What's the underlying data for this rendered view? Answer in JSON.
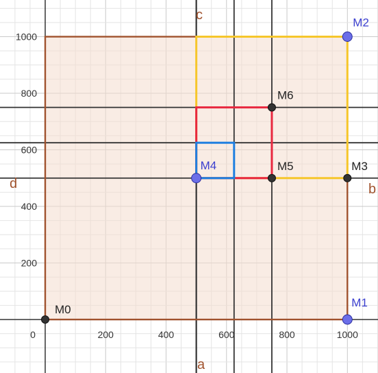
{
  "x_ticks": [
    {
      "value": 0,
      "label": "0"
    },
    {
      "value": 200,
      "label": "200"
    },
    {
      "value": 400,
      "label": "400"
    },
    {
      "value": 600,
      "label": "600"
    },
    {
      "value": 800,
      "label": "800"
    },
    {
      "value": 1000,
      "label": "1000"
    }
  ],
  "y_ticks": [
    {
      "value": 200,
      "label": "200"
    },
    {
      "value": 400,
      "label": "400"
    },
    {
      "value": 600,
      "label": "600"
    },
    {
      "value": 800,
      "label": "800"
    },
    {
      "value": 1000,
      "label": "1000"
    }
  ],
  "colors": {
    "region_fill": "#f4dccd",
    "region_border": "#a0522d",
    "line_label": "#a0522d",
    "grid_minor": "#e4e4e4",
    "grid_major": "#c9c9c9",
    "dark_line": "#333333",
    "yellow": "#f6c62b",
    "red": "#e8283f",
    "blue": "#1f7fe0",
    "point_blue": "#6b6ee8",
    "point_dark": "#333333",
    "point_label_blue": "#3b3fcf",
    "point_label_dark": "#222222"
  },
  "points": [
    {
      "name": "M0",
      "x": 0,
      "y": 0,
      "style": "dark"
    },
    {
      "name": "M1",
      "x": 1000,
      "y": 0,
      "style": "blue"
    },
    {
      "name": "M2",
      "x": 1000,
      "y": 1000,
      "style": "blue"
    },
    {
      "name": "M3",
      "x": 1000,
      "y": 500,
      "style": "dark"
    },
    {
      "name": "M4",
      "x": 500,
      "y": 500,
      "style": "blue"
    },
    {
      "name": "M5",
      "x": 750,
      "y": 500,
      "style": "dark"
    },
    {
      "name": "M6",
      "x": 750,
      "y": 750,
      "style": "dark"
    }
  ],
  "line_labels": {
    "a": "a",
    "b": "b",
    "c": "c",
    "d": "d"
  },
  "vertical_lines": [
    500,
    625,
    750
  ],
  "horizontal_lines": [
    500,
    625,
    750
  ],
  "squares": [
    {
      "name": "outer-square",
      "x0": 0,
      "y0": 0,
      "x1": 1000,
      "y1": 1000,
      "color": "region_border",
      "fill": true
    },
    {
      "name": "yellow-square",
      "x0": 500,
      "y0": 500,
      "x1": 1000,
      "y1": 1000,
      "color": "yellow",
      "fill": false
    },
    {
      "name": "red-square",
      "x0": 500,
      "y0": 500,
      "x1": 750,
      "y1": 750,
      "color": "red",
      "fill": false
    },
    {
      "name": "blue-square",
      "x0": 500,
      "y0": 500,
      "x1": 625,
      "y1": 625,
      "color": "blue",
      "fill": false
    }
  ]
}
